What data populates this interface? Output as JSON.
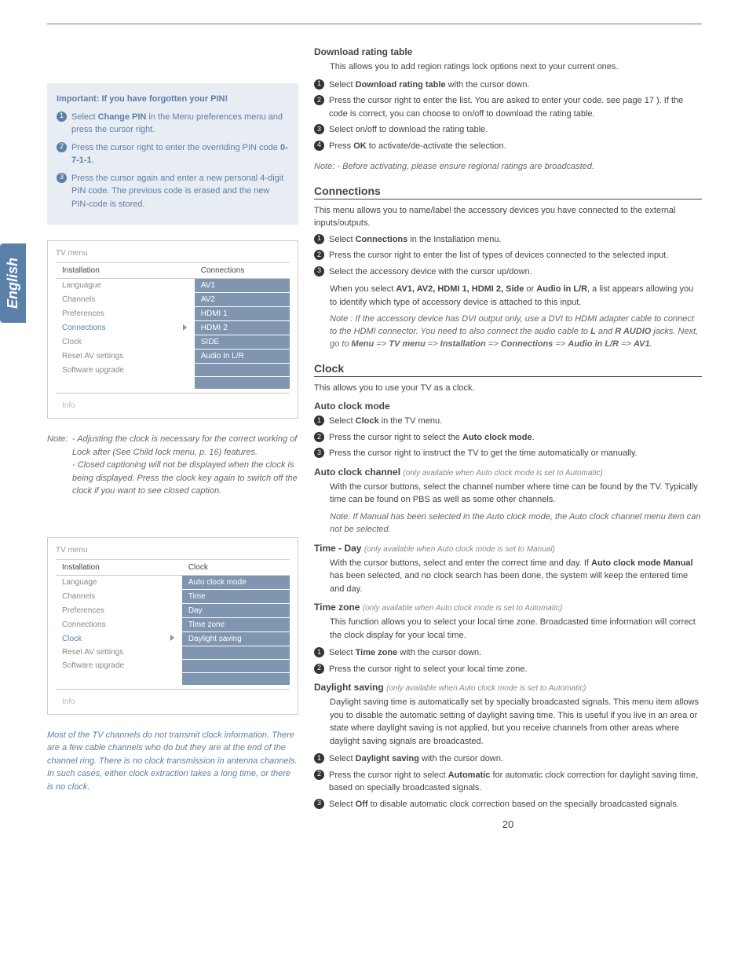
{
  "lang_tab": "English",
  "page_number": "20",
  "pin_box": {
    "title": "Important: If you have forgotten your PIN!",
    "steps": [
      "Select <b>Change PIN</b> in the Menu preferences menu and press the cursor right.",
      "Press the cursor right to enter the overriding PIN code <b>0-7-1-1</b>.",
      "Press the cursor again and enter a new personal 4-digit PIN code. The previous code is erased and the new PIN-code is stored."
    ]
  },
  "menu1": {
    "title": "TV menu",
    "left_header": "Installation",
    "right_header": "Connections",
    "left_items": [
      "Languague",
      "Channels",
      "Preferences",
      "Connections",
      "Clock",
      "Reset AV settings",
      "Software upgrade"
    ],
    "selected_left": "Connections",
    "right_items": [
      "AV1",
      "AV2",
      "HDMI 1",
      "HDMI 2",
      "SIDE",
      "Audio In L/R",
      "",
      ""
    ],
    "info": "Info"
  },
  "note1": {
    "prefix": "Note: ",
    "line1": "- Adjusting the clock is necessary for the correct working of Lock after (See Child lock menu, p. 16) features.",
    "line2": "- Closed captioning will not be displayed when the clock is being displayed. Press the clock key again to switch off the clock if you want to see closed caption."
  },
  "menu2": {
    "title": "TV menu",
    "left_header": "Installation",
    "right_header": "Clock",
    "left_items": [
      "Language",
      "Channels",
      "Preferences",
      "Connections",
      "Clock",
      "Reset AV settings",
      "Software upgrade"
    ],
    "selected_left": "Clock",
    "right_items": [
      "Auto clock mode",
      "Time",
      "Day",
      "Time zone",
      "Daylight saving",
      "",
      "",
      ""
    ],
    "info": "Info"
  },
  "note2": "Most of the TV channels do not transmit clock information. There are a few cable channels who do but they are at the end of the channel ring. There is no clock transmission in antenna channels. In such cases, either clock extraction takes a long time, or there is no clock.",
  "download": {
    "heading": "Download rating table",
    "intro": "This allows you to add region ratings lock options next to your current ones.",
    "steps": [
      "Select <b>Download rating table</b> with the cursor down.",
      "Press the cursor right to enter the list. You are asked to enter your code. see page 17 ). If the code is correct, you can choose to on/off to download the rating table.",
      "Select on/off to download the rating table.",
      "Press <b>OK</b> to activate/de-activate the selection."
    ],
    "note": "Note: - Before activating, please ensure regional ratings are broadcasted."
  },
  "connections": {
    "heading": "Connections",
    "intro": "This menu allows you to name/label the accessory devices you have connected to the external inputs/outputs.",
    "steps": [
      "Select <b>Connections</b> in the Installation menu.",
      "Press the cursor right to enter the list of types of devices connected to the selected input.",
      "Select the accessory device with the cursor up/down."
    ],
    "para": "When you select <b>AV1, AV2, HDMI 1, HDMI 2, Side</b> or <b>Audio in L/R</b>, a list appears allowing you to identify which type of accessory device is attached to this input.",
    "note": "Note : If the accessory device has DVI output only, use a DVI to HDMI adapter cable to connect to the HDMI connector. You need to also connect the audio cable to <b>L</b> and <b>R AUDIO</b> jacks. Next, go to <b>Menu</b> => <b>TV menu</b> => <b>Installation</b> => <b>Connections</b> => <b>Audio in L/R</b> => <b>AV1</b>."
  },
  "clock": {
    "heading": "Clock",
    "intro": "This allows you to use your TV as a clock.",
    "auto_mode": {
      "heading": "Auto clock mode",
      "steps": [
        "Select <b>Clock</b> in the TV menu.",
        "Press the cursor right to select the <b>Auto clock mode</b>.",
        "Press the cursor right to instruct the TV to get the time automatically or manually."
      ]
    },
    "auto_channel": {
      "heading": "Auto clock channel",
      "cond": "(only available when Auto clock mode is set to Automatic)",
      "body": "With the cursor buttons, select the channel number where time can be found by the TV. Typically time can be found on PBS as well as some other channels.",
      "note": "Note: If Manual has been selected in the Auto clock mode, the Auto clock channel menu item can not be selected."
    },
    "time_day": {
      "heading": "Time - Day",
      "cond": "(only available when Auto clock mode is set to Manual)",
      "body": "With the cursor buttons, select and enter the correct time and day. If <b>Auto clock mode Manual</b> has been selected, and no clock search has been done, the system will keep the entered time and day."
    },
    "time_zone": {
      "heading": "Time zone",
      "cond": "(only available when Auto clock mode is set to Automatic)",
      "body": "This function allows you to select your local time zone. Broadcasted time information will correct the clock display for your local time.",
      "steps": [
        "Select <b>Time zone</b> with the cursor down.",
        "Press the cursor right to select your local time zone."
      ]
    },
    "daylight": {
      "heading": "Daylight saving",
      "cond": "(only available when Auto clock mode is set to Automatic)",
      "body": "Daylight saving time is automatically set by specially broadcasted signals. This menu item allows you to disable the automatic setting of daylight saving time. This is useful if you live in an area or state where daylight saving is not applied, but you receive channels from other areas where daylight saving signals are broadcasted.",
      "steps": [
        "Select <b>Daylight saving</b> with the cursor down.",
        "Press the cursor right to select <b>Automatic</b> for automatic clock correction for daylight saving time, based on specially broadcasted signals.",
        "Select <b>Off</b> to disable automatic clock correction based on the specially broadcasted signals."
      ]
    }
  }
}
